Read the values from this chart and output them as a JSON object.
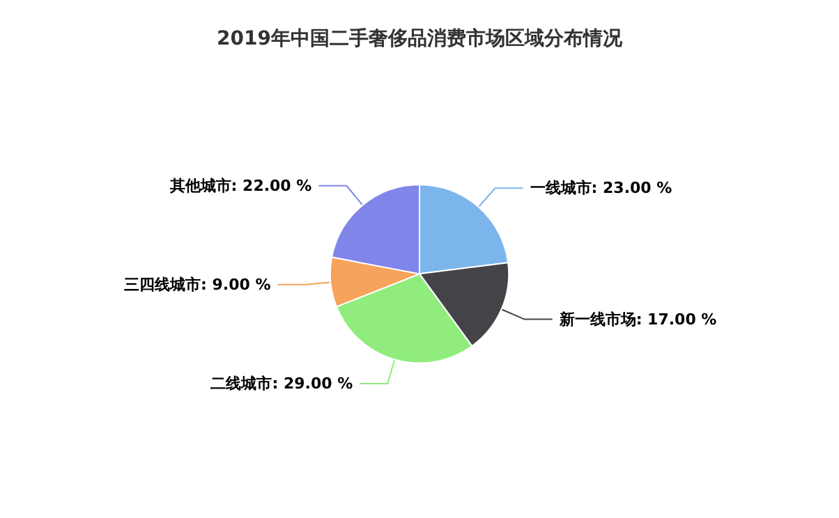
{
  "chart_data": {
    "type": "pie",
    "title": "2019年中国二手奢侈品消费市场区域分布情况",
    "categories": [
      "一线城市",
      "新一线市场",
      "二线城市",
      "三四线城市",
      "其他城市"
    ],
    "values": [
      23,
      17,
      29,
      9,
      22
    ],
    "value_labels": [
      "23.00 %",
      "17.00 %",
      "29.00 %",
      "9.00 %",
      "22.00 %"
    ],
    "colors": [
      "#7cb5ec",
      "#434348",
      "#90ed7d",
      "#f7a35c",
      "#8085e9"
    ],
    "legend": false
  }
}
